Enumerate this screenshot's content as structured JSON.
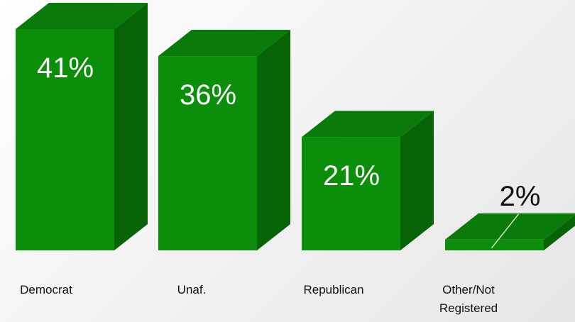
{
  "chart_data": {
    "type": "bar",
    "style": "3d",
    "categories": [
      "Democrat",
      "Unaf.",
      "Republican",
      "Other/Not Registered"
    ],
    "values": [
      41,
      36,
      21,
      2
    ],
    "value_labels": [
      "41%",
      "36%",
      "21%",
      "2%"
    ],
    "unit": "%",
    "ylim": [
      0,
      41
    ],
    "grid": false,
    "legend": "none",
    "colors": {
      "front": "#0b8f0b",
      "side": "#066306",
      "top": "#0a7a0a",
      "label_inside": "#ffffff",
      "label_outside": "#111111",
      "leader_line": "#cfe8cf"
    }
  }
}
